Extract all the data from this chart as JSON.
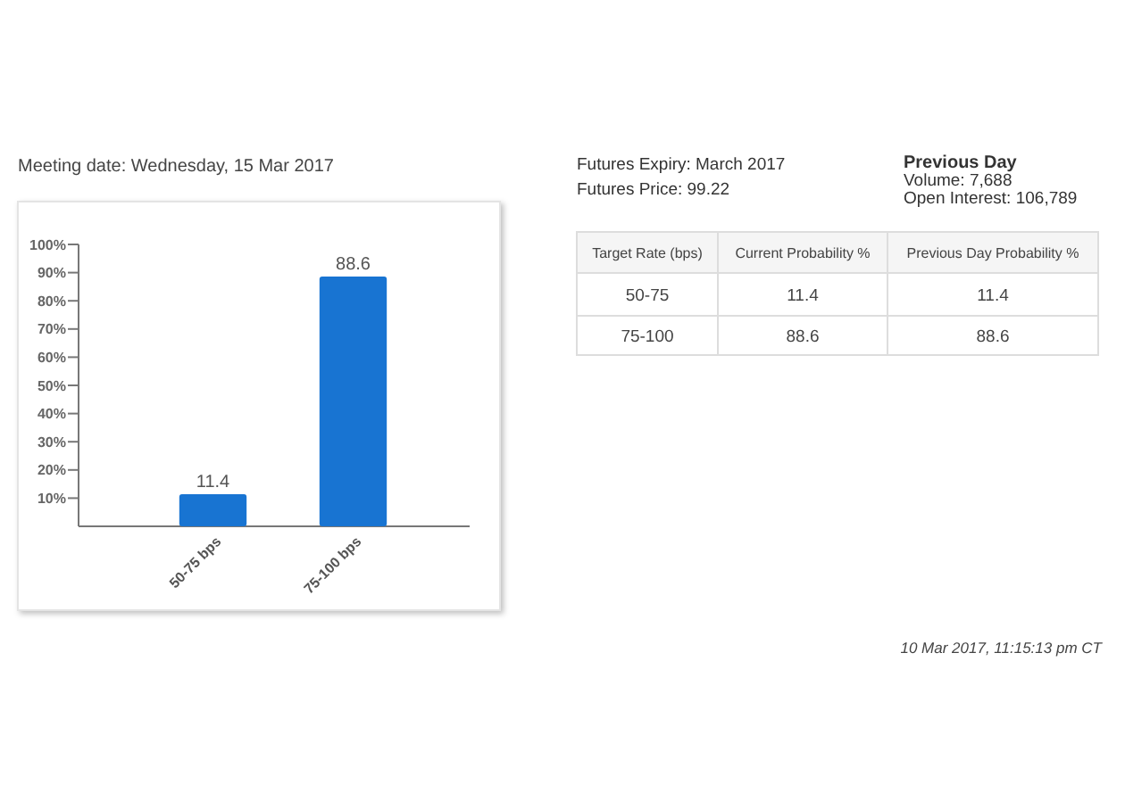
{
  "chart_data": [
    {
      "type": "bar",
      "title": "Meeting date: Wednesday, 15 Mar 2017",
      "categories": [
        "50-75 bps",
        "75-100 bps"
      ],
      "values": [
        11.4,
        88.6
      ],
      "color": "#1874d2",
      "ylim": [
        0,
        100
      ],
      "yticks": [
        {
          "value": 10,
          "label": "10%"
        },
        {
          "value": 20,
          "label": "20%"
        },
        {
          "value": 30,
          "label": "30%"
        },
        {
          "value": 40,
          "label": "40%"
        },
        {
          "value": 50,
          "label": "50%"
        },
        {
          "value": 60,
          "label": "60%"
        },
        {
          "value": 70,
          "label": "70%"
        },
        {
          "value": 80,
          "label": "80%"
        },
        {
          "value": 90,
          "label": "90%"
        },
        {
          "value": 100,
          "label": "100%"
        }
      ],
      "data_labels": true
    },
    {
      "type": "other",
      "annotations": [
        "Futures Expiry: March 2017",
        "Futures Price: 99.22",
        "Previous Day",
        "Volume: 7,688",
        "Open Interest: 106,789",
        "Target Rate (bps)",
        "Current Probability %",
        "Previous Day Probability %",
        "50-75",
        "11.4",
        "11.4",
        "75-100",
        "88.6",
        "88.6",
        "10 Mar 2017, 11:15:13 pm CT"
      ]
    }
  ]
}
